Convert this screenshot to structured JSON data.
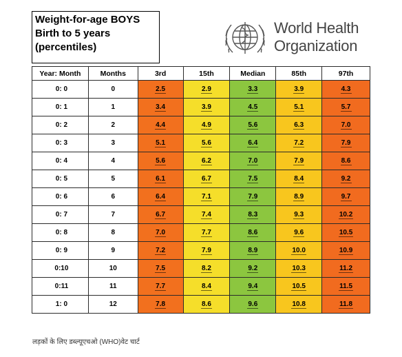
{
  "title_lines": [
    "Weight-for-age  BOYS",
    "Birth to 5 years",
    "(percentiles)"
  ],
  "org_name_lines": [
    "World Health",
    "Organization"
  ],
  "columns": [
    "Year: Month",
    "Months",
    "3rd",
    "15th",
    "Median",
    "85th",
    "97th"
  ],
  "rows": [
    {
      "ym": "0: 0",
      "months": "0",
      "p3": "2.5",
      "p15": "2.9",
      "med": "3.3",
      "p85": "3.9",
      "p97": "4.3"
    },
    {
      "ym": "0: 1",
      "months": "1",
      "p3": "3.4",
      "p15": "3.9",
      "med": "4.5",
      "p85": "5.1",
      "p97": "5.7"
    },
    {
      "ym": "0: 2",
      "months": "2",
      "p3": "4.4",
      "p15": "4.9",
      "med": "5.6",
      "p85": "6.3",
      "p97": "7.0"
    },
    {
      "ym": "0: 3",
      "months": "3",
      "p3": "5.1",
      "p15": "5.6",
      "med": "6.4",
      "p85": "7.2",
      "p97": "7.9"
    },
    {
      "ym": "0: 4",
      "months": "4",
      "p3": "5.6",
      "p15": "6.2",
      "med": "7.0",
      "p85": "7.9",
      "p97": "8.6"
    },
    {
      "ym": "0: 5",
      "months": "5",
      "p3": "6.1",
      "p15": "6.7",
      "med": "7.5",
      "p85": "8.4",
      "p97": "9.2"
    },
    {
      "ym": "0: 6",
      "months": "6",
      "p3": "6.4",
      "p15": "7.1",
      "med": "7.9",
      "p85": "8.9",
      "p97": "9.7"
    },
    {
      "ym": "0: 7",
      "months": "7",
      "p3": "6.7",
      "p15": "7.4",
      "med": "8.3",
      "p85": "9.3",
      "p97": "10.2"
    },
    {
      "ym": "0: 8",
      "months": "8",
      "p3": "7.0",
      "p15": "7.7",
      "med": "8.6",
      "p85": "9.6",
      "p97": "10.5"
    },
    {
      "ym": "0: 9",
      "months": "9",
      "p3": "7.2",
      "p15": "7.9",
      "med": "8.9",
      "p85": "10.0",
      "p97": "10.9"
    },
    {
      "ym": "0:10",
      "months": "10",
      "p3": "7.5",
      "p15": "8.2",
      "med": "9.2",
      "p85": "10.3",
      "p97": "11.2"
    },
    {
      "ym": "0:11",
      "months": "11",
      "p3": "7.7",
      "p15": "8.4",
      "med": "9.4",
      "p85": "10.5",
      "p97": "11.5"
    },
    {
      "ym": "1: 0",
      "months": "12",
      "p3": "7.8",
      "p15": "8.6",
      "med": "9.6",
      "p85": "10.8",
      "p97": "11.8"
    }
  ],
  "colors": {
    "p3": "#f2701e",
    "p15": "#f5de2a",
    "median": "#8cc63f",
    "p85": "#f8c61e",
    "p97": "#f16b1f"
  },
  "caption": "लड़कों के लिए डब्ल्यूएचओ (WHO)वेट चार्ट"
}
